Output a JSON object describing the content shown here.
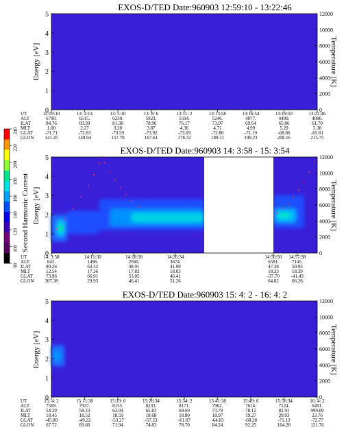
{
  "chart_data": {
    "type": "heatmap",
    "colorbar": {
      "label": "Second Harmonic Current",
      "ticks": [
        80,
        100,
        120,
        140,
        160,
        180,
        200,
        220,
        240
      ],
      "range": [
        80,
        240
      ],
      "colors": [
        "#000000",
        "#5a0060",
        "#7a007a",
        "#3c00b4",
        "#0000e6",
        "#0050ff",
        "#00a0ff",
        "#00e0e6",
        "#00e68c",
        "#8cff3c",
        "#ffff00",
        "#ff9600",
        "#ff0000"
      ]
    },
    "panels": [
      {
        "title": "EXOS-D/TED   Date:960903  12:59:10 - 13:22:46",
        "ylabel": "Energy [eV]",
        "y2label": "Temperature [K]",
        "ylim": [
          0,
          5
        ],
        "y_ticks": [
          0,
          1,
          2,
          3,
          4,
          5
        ],
        "y2lim": [
          0,
          12000
        ],
        "y2_ticks": [
          0,
          2000,
          4000,
          6000,
          8000,
          10000,
          12000
        ],
        "background_color": "#3a1fd9",
        "data_gap": null,
        "blobs": [],
        "temperature_points": [],
        "ephemeris": {
          "labels": [
            "UT",
            "ALT",
            "ILAT",
            "MLT",
            "GLAT",
            "GLON"
          ],
          "columns": [
            [
              "12:59:10",
              "6790.",
              "84.76",
              "1.00",
              "-71.71",
              "141.45"
            ],
            [
              "13: 2:14",
              "6515.",
              "83.39",
              "2.27",
              "-72.83",
              "149.04"
            ],
            [
              "13: 5:10",
              "6230.",
              "81.38",
              "3.20",
              "-73.59",
              "157.70"
            ],
            [
              "13: 8: 6",
              "5923.",
              "78.96",
              "3.87",
              "-73.92",
              "167.61"
            ],
            [
              "13:11: 2",
              "5594.",
              "76.17",
              "4.36",
              "-73.69",
              "178.32"
            ],
            [
              "13:13:58",
              "5246.",
              "73.07",
              "4.71",
              "-72.80",
              "189.11"
            ],
            [
              "13:16:54",
              "4877.",
              "69.64",
              "4.99",
              "-71.19",
              "199.23"
            ],
            [
              "13:19:50",
              "4490.",
              "65.86",
              "5.20",
              "-68.86",
              "208.16"
            ],
            [
              "13:22:46",
              "4086.",
              "61.70",
              "5.38",
              "-65.81",
              "215.75"
            ]
          ]
        }
      },
      {
        "title": "EXOS-D/TED   Date:960903  14: 3:58 - 15: 3:54",
        "ylabel": "Energy [eV]",
        "y2label": "Temperature [K]",
        "ylim": [
          0,
          5
        ],
        "y_ticks": [
          0,
          1,
          2,
          3,
          4,
          5
        ],
        "y2lim": [
          0,
          12000
        ],
        "y2_ticks": [
          0,
          2000,
          4000,
          6000,
          8000,
          10000,
          12000
        ],
        "background_color": "#3a1fd9",
        "data_gap": [
          0.575,
          0.835
        ],
        "blobs": [
          {
            "x0": 0.0,
            "x1": 0.06,
            "e0": 0.6,
            "e1": 2.0,
            "color": "#1a6cff"
          },
          {
            "x0": 0.02,
            "x1": 0.05,
            "e0": 0.9,
            "e1": 1.7,
            "color": "#00c8ff"
          },
          {
            "x0": 0.025,
            "x1": 0.045,
            "e0": 1.1,
            "e1": 1.5,
            "color": "#00e68c"
          },
          {
            "x0": 0.06,
            "x1": 0.18,
            "e0": 1.0,
            "e1": 2.2,
            "color": "#1a50ff"
          },
          {
            "x0": 0.18,
            "x1": 0.575,
            "e0": 1.2,
            "e1": 2.8,
            "color": "#1a50ff"
          },
          {
            "x0": 0.22,
            "x1": 0.575,
            "e0": 1.4,
            "e1": 2.3,
            "color": "#0090ff"
          },
          {
            "x0": 0.3,
            "x1": 0.575,
            "e0": 1.6,
            "e1": 2.1,
            "color": "#00d2e6"
          },
          {
            "x0": 0.835,
            "x1": 0.95,
            "e0": 1.3,
            "e1": 3.0,
            "color": "#1a50ff"
          },
          {
            "x0": 0.84,
            "x1": 0.92,
            "e0": 1.6,
            "e1": 2.3,
            "color": "#00b4ff"
          },
          {
            "x0": 0.85,
            "x1": 0.9,
            "e0": 1.8,
            "e1": 2.1,
            "color": "#00e6c8"
          }
        ],
        "temperature_points": [
          [
            0.02,
            3000
          ],
          [
            0.05,
            4200
          ],
          [
            0.08,
            5600
          ],
          [
            0.11,
            7000
          ],
          [
            0.14,
            8400
          ],
          [
            0.16,
            9800
          ],
          [
            0.18,
            11200
          ],
          [
            0.19,
            12000
          ],
          [
            0.2,
            11300
          ],
          [
            0.22,
            10200
          ],
          [
            0.24,
            9100
          ],
          [
            0.26,
            8200
          ],
          [
            0.28,
            7300
          ],
          [
            0.3,
            6500
          ],
          [
            0.33,
            5800
          ],
          [
            0.85,
            5000
          ],
          [
            0.87,
            5600
          ],
          [
            0.89,
            6200
          ],
          [
            0.91,
            7000
          ],
          [
            0.93,
            7900
          ],
          [
            0.95,
            8900
          ],
          [
            0.97,
            10100
          ],
          [
            0.99,
            11400
          ]
        ],
        "ephemeris": {
          "labels": [
            "UT",
            "ALT",
            "ILAT",
            "MLT",
            "GLAT",
            "GLON"
          ],
          "columns": [
            [
              "14: 3:58",
              "642.",
              "80.26",
              "12.54",
              "73.96",
              "307.38"
            ],
            [
              "14:11:30",
              "1496.",
              "63.32",
              "17.36",
              "66.91",
              "29.93"
            ],
            [
              "14:18:58",
              "2560.",
              "48.91",
              "17.83",
              "53.05",
              "46.41"
            ],
            [
              "14:26:34",
              "3674.",
              "41.90",
              "18.03",
              "46.41",
              "51.26"
            ],
            [
              "14:50:50",
              "6581.",
              "47.38",
              "18.33",
              "-37.70",
              "64.82"
            ],
            [
              "14:57:38",
              "7145.",
              "50.93",
              "18.39",
              "-41.43",
              "66.26"
            ]
          ]
        }
      },
      {
        "title": "EXOS-D/TED   Date:960903  15: 4: 2 - 16: 4: 2",
        "ylabel": "Energy [eV]",
        "y2label": "Temperature [K]",
        "ylim": [
          0,
          5
        ],
        "y_ticks": [
          0,
          1,
          2,
          3,
          4,
          5
        ],
        "y2lim": [
          0,
          12000
        ],
        "y2_ticks": [
          0,
          2000,
          4000,
          6000,
          8000,
          10000,
          12000
        ],
        "background_color": "#3a1fd9",
        "data_gap": null,
        "blobs": [
          {
            "x0": 0.0,
            "x1": 0.05,
            "e0": 1.6,
            "e1": 2.7,
            "color": "#1a6cff"
          },
          {
            "x0": 0.005,
            "x1": 0.035,
            "e0": 1.9,
            "e1": 2.4,
            "color": "#0096ff"
          }
        ],
        "temperature_points": [],
        "ephemeris": {
          "labels": [
            "UT",
            "ALT",
            "ILAT",
            "MLT",
            "GLAT",
            "GLON"
          ],
          "columns": [
            [
              "15: 4: 2",
              "7569.",
              "54.29",
              "18.45",
              "-45.00",
              "67.72"
            ],
            [
              "15:11:38",
              "7937.",
              "58.23",
              "18.52",
              "-49.22",
              "69.66"
            ],
            [
              "15:19: 6",
              "8155.",
              "62.04",
              "18.59",
              "-53.27",
              "71.94"
            ],
            [
              "15:26:34",
              "8233.",
              "65.83",
              "18.68",
              "-57.23",
              "74.83"
            ],
            [
              "15:34: 2",
              "8171.",
              "69.69",
              "18.80",
              "-61.07",
              "78.70"
            ],
            [
              "15:41:38",
              "7962.",
              "73.79",
              "18.97",
              "-64.83",
              "84.24"
            ],
            [
              "15:49: 6",
              "7614.",
              "78.12",
              "19.27",
              "-68.28",
              "92.25"
            ],
            [
              "15:56:34",
              "7124.",
              "82.91",
              "20.03",
              "-71.13",
              "104.28"
            ],
            [
              "16: 4: 2",
              "6491.",
              "999.00",
              "23.76",
              "-72.77",
              "121.76"
            ]
          ]
        }
      }
    ]
  }
}
